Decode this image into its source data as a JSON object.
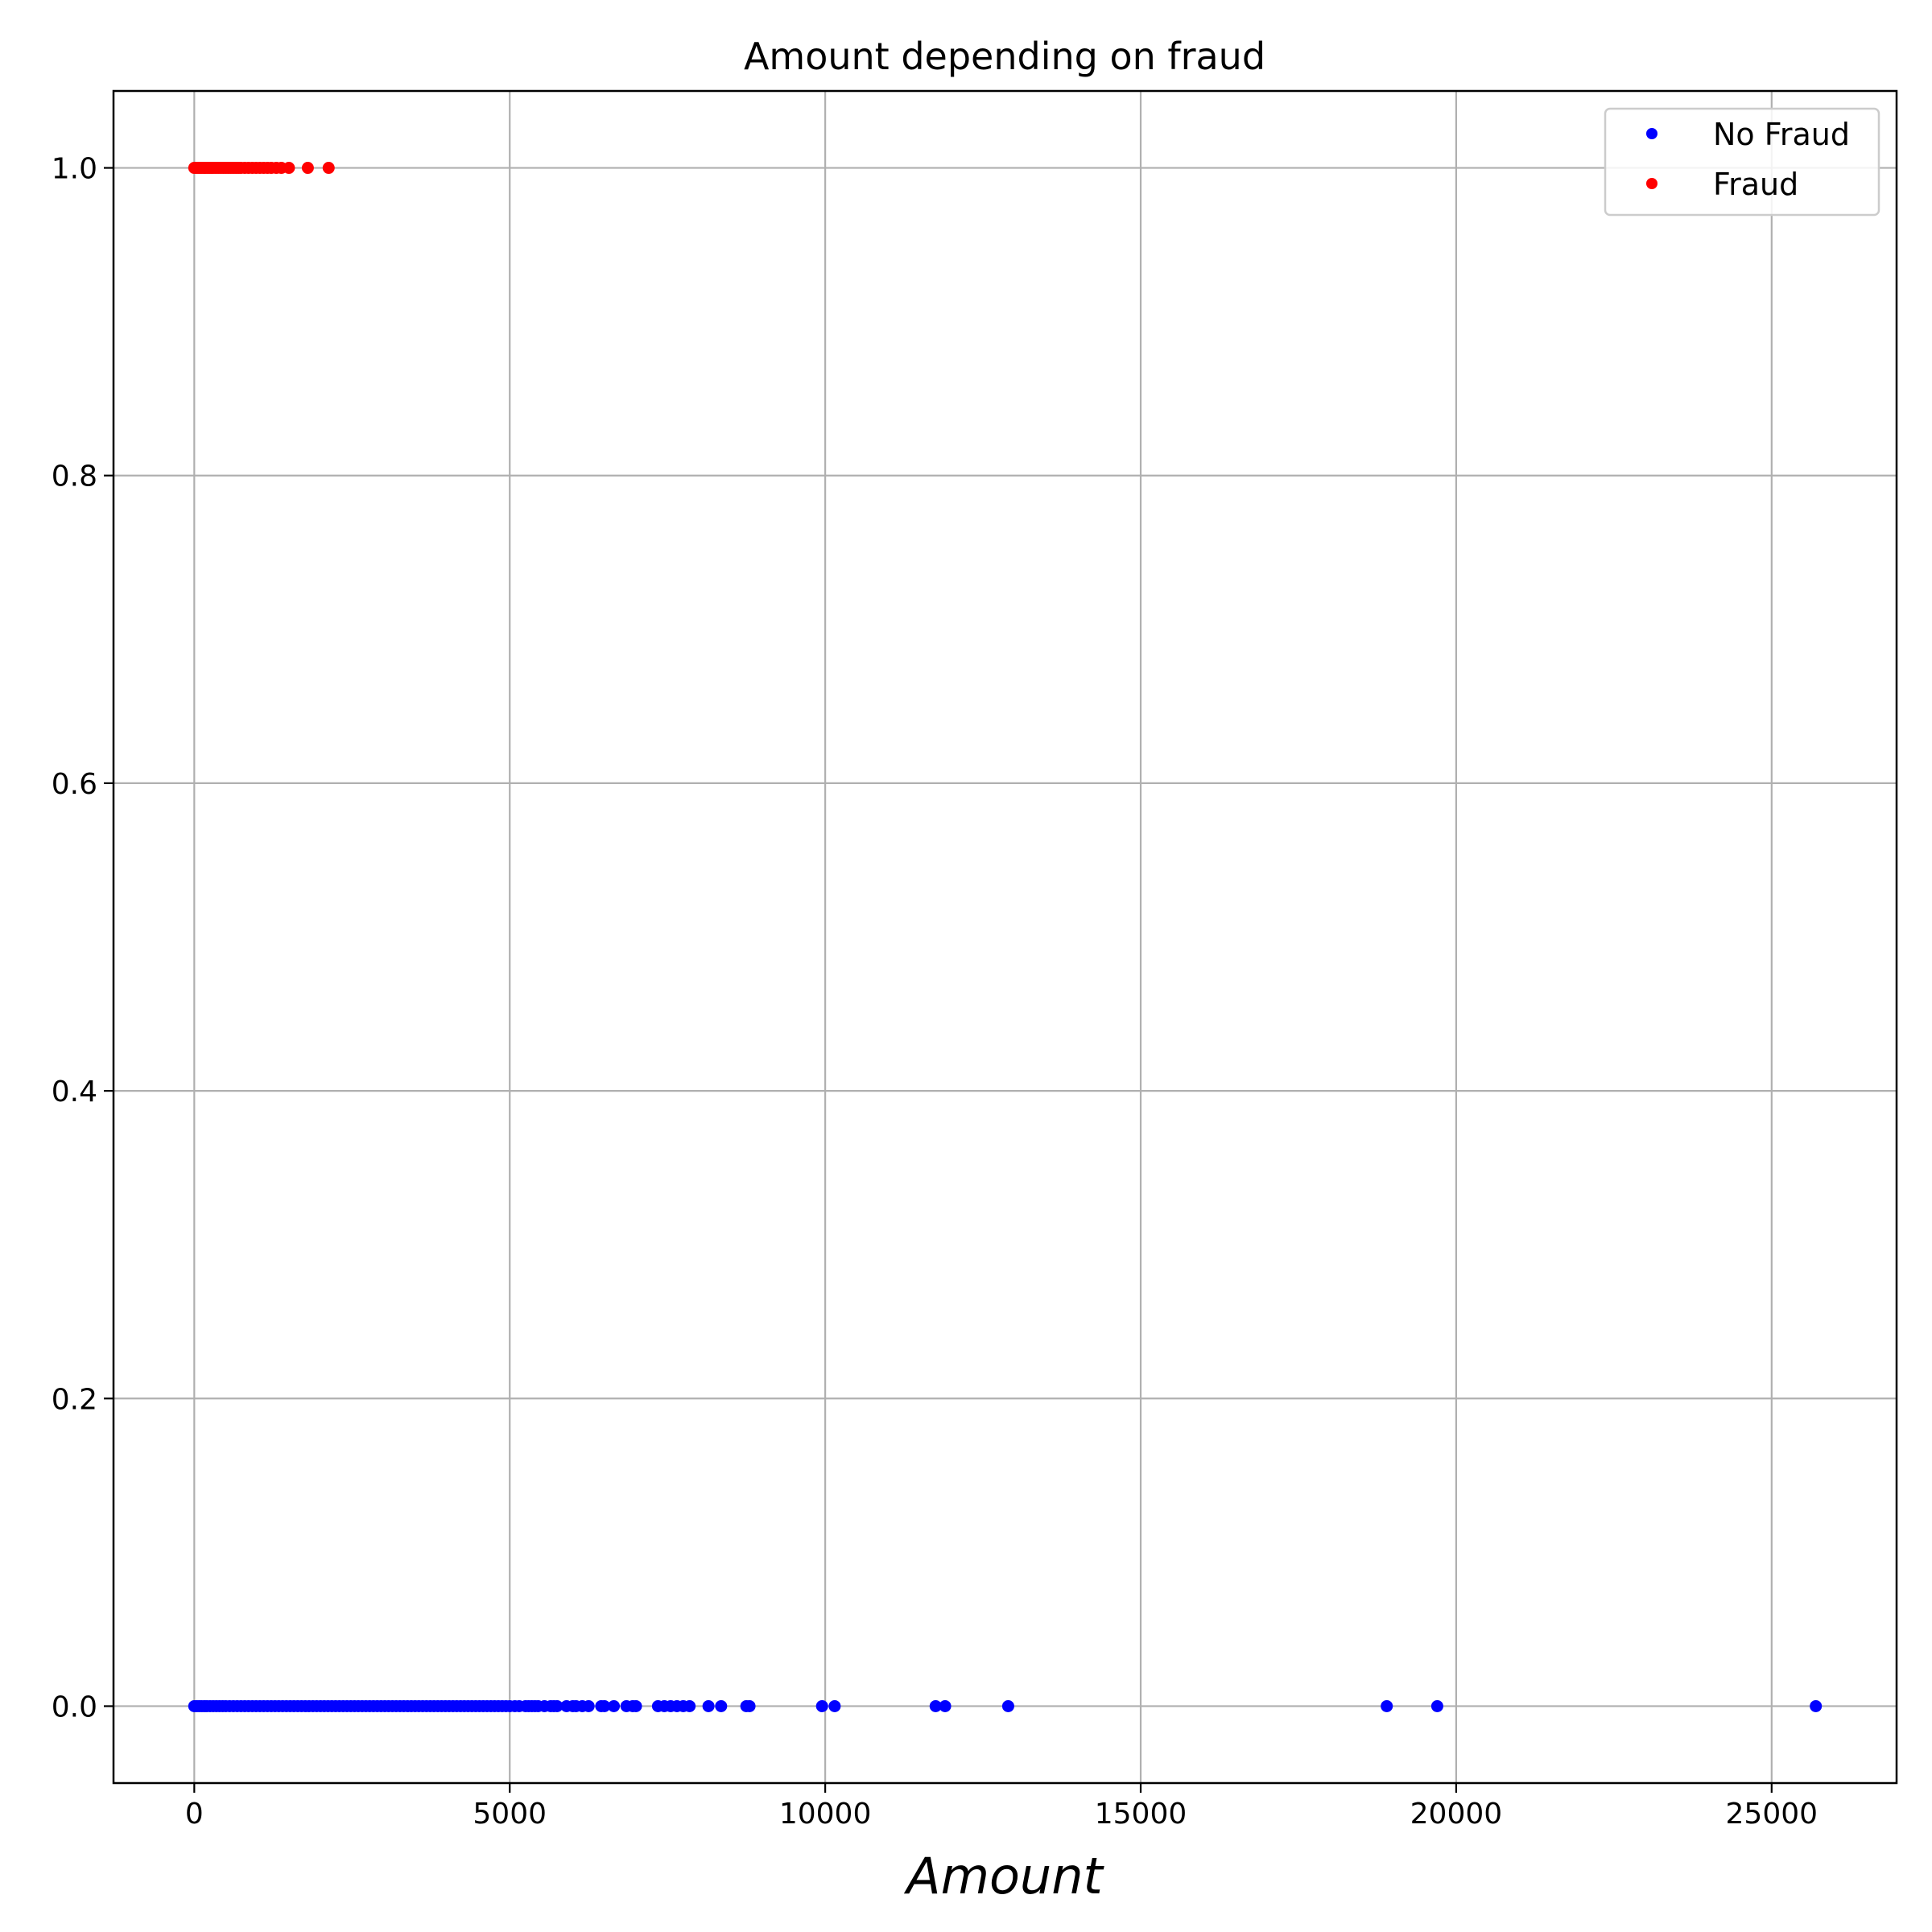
{
  "chart_data": {
    "type": "scatter",
    "title": "Amount depending on fraud",
    "xlabel": "Amount",
    "ylabel": "",
    "xlim": [
      -1280,
      26980
    ],
    "ylim": [
      -0.05,
      1.05
    ],
    "xticks": [
      0,
      5000,
      10000,
      15000,
      20000,
      25000
    ],
    "xtick_labels": [
      "0",
      "5000",
      "10000",
      "15000",
      "20000",
      "25000"
    ],
    "yticks": [
      0.0,
      0.2,
      0.4,
      0.6,
      0.8,
      1.0
    ],
    "ytick_labels": [
      "0.0",
      "0.2",
      "0.4",
      "0.6",
      "0.8",
      "1.0"
    ],
    "grid": true,
    "legend_position": "top-right",
    "series": [
      {
        "name": "No Fraud",
        "color": "#0000ff",
        "x": [
          0,
          40,
          80,
          120,
          160,
          200,
          250,
          300,
          350,
          400,
          450,
          500,
          560,
          620,
          680,
          740,
          800,
          860,
          920,
          980,
          1040,
          1100,
          1160,
          1220,
          1280,
          1340,
          1400,
          1460,
          1520,
          1580,
          1640,
          1700,
          1760,
          1820,
          1880,
          1940,
          2000,
          2060,
          2120,
          2180,
          2240,
          2300,
          2360,
          2420,
          2480,
          2540,
          2600,
          2660,
          2720,
          2780,
          2840,
          2900,
          2960,
          3020,
          3080,
          3140,
          3200,
          3260,
          3320,
          3380,
          3440,
          3500,
          3560,
          3620,
          3680,
          3740,
          3800,
          3860,
          3920,
          3980,
          4040,
          4100,
          4160,
          4220,
          4280,
          4340,
          4400,
          4460,
          4520,
          4580,
          4640,
          4700,
          4760,
          4820,
          4880,
          4940,
          5000,
          5080,
          5150,
          5250,
          5300,
          5350,
          5400,
          5450,
          5550,
          5650,
          5700,
          5750,
          5900,
          6000,
          6050,
          6150,
          6250,
          6450,
          6500,
          6650,
          6850,
          6950,
          7000,
          7350,
          7450,
          7550,
          7650,
          7750,
          7850,
          8150,
          8350,
          8750,
          8800,
          9950,
          10150,
          11750,
          11900,
          12900,
          18900,
          19700,
          25700
        ],
        "y": [
          0,
          0,
          0,
          0,
          0,
          0,
          0,
          0,
          0,
          0,
          0,
          0,
          0,
          0,
          0,
          0,
          0,
          0,
          0,
          0,
          0,
          0,
          0,
          0,
          0,
          0,
          0,
          0,
          0,
          0,
          0,
          0,
          0,
          0,
          0,
          0,
          0,
          0,
          0,
          0,
          0,
          0,
          0,
          0,
          0,
          0,
          0,
          0,
          0,
          0,
          0,
          0,
          0,
          0,
          0,
          0,
          0,
          0,
          0,
          0,
          0,
          0,
          0,
          0,
          0,
          0,
          0,
          0,
          0,
          0,
          0,
          0,
          0,
          0,
          0,
          0,
          0,
          0,
          0,
          0,
          0,
          0,
          0,
          0,
          0,
          0,
          0,
          0,
          0,
          0,
          0,
          0,
          0,
          0,
          0,
          0,
          0,
          0,
          0,
          0,
          0,
          0,
          0,
          0,
          0,
          0,
          0,
          0,
          0,
          0,
          0,
          0,
          0,
          0,
          0,
          0,
          0,
          0,
          0,
          0,
          0,
          0,
          0,
          0,
          0,
          0,
          0
        ]
      },
      {
        "name": "Fraud",
        "color": "#ff0000",
        "x": [
          0,
          30,
          60,
          90,
          120,
          150,
          180,
          210,
          240,
          270,
          300,
          340,
          380,
          420,
          460,
          500,
          540,
          580,
          620,
          660,
          700,
          740,
          800,
          860,
          920,
          980,
          1040,
          1100,
          1160,
          1220,
          1300,
          1380,
          1500,
          1800,
          2130
        ],
        "y": [
          1,
          1,
          1,
          1,
          1,
          1,
          1,
          1,
          1,
          1,
          1,
          1,
          1,
          1,
          1,
          1,
          1,
          1,
          1,
          1,
          1,
          1,
          1,
          1,
          1,
          1,
          1,
          1,
          1,
          1,
          1,
          1,
          1,
          1,
          1
        ]
      }
    ]
  }
}
